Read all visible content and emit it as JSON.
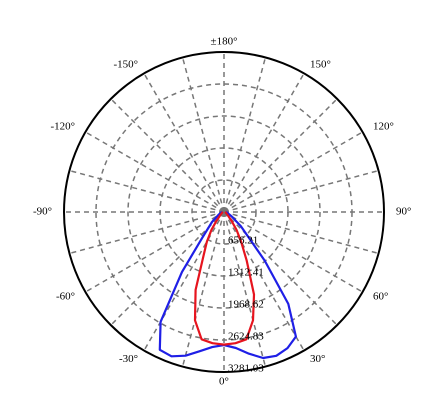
{
  "chart_data": {
    "type": "polar",
    "angles": [
      -90,
      -80,
      -70,
      -60,
      -50,
      -40,
      -35,
      -30,
      -25,
      -20,
      -15,
      -10,
      -5,
      0,
      5,
      10,
      15,
      20,
      25,
      30,
      35,
      40,
      50,
      60,
      70,
      80,
      90
    ],
    "series": [
      {
        "color": "#1f1fe6",
        "values": [
          40,
          60,
          90,
          150,
          320,
          700,
          1500,
          2600,
          3117,
          3150,
          3050,
          2900,
          2780,
          2727,
          2800,
          2950,
          3100,
          3137,
          3080,
          2950,
          2300,
          1300,
          450,
          180,
          90,
          60,
          40
        ]
      },
      {
        "color": "#e6141e",
        "values": [
          20,
          30,
          40,
          60,
          100,
          250,
          450,
          700,
          1000,
          1700,
          2300,
          2650,
          2700,
          2720,
          2700,
          2650,
          2300,
          1800,
          1100,
          700,
          450,
          250,
          100,
          60,
          40,
          30,
          20
        ]
      }
    ],
    "rlim": [
      0,
      3281.03
    ],
    "rticks": [
      656.21,
      1312.41,
      1968.62,
      2624.83,
      3281.03
    ],
    "angleticks": [
      {
        "value": 0,
        "label": "0°"
      },
      {
        "value": 30,
        "label": "30°"
      },
      {
        "value": 60,
        "label": "60°"
      },
      {
        "value": 90,
        "label": "90°"
      },
      {
        "value": 120,
        "label": "120°"
      },
      {
        "value": 150,
        "label": "150°"
      },
      {
        "value": 180,
        "label": "±180°"
      },
      {
        "value": -150,
        "label": "-150°"
      },
      {
        "value": -120,
        "label": "-120°"
      },
      {
        "value": -90,
        "label": "-90°"
      },
      {
        "value": -60,
        "label": "-60°"
      },
      {
        "value": -30,
        "label": "-30°"
      }
    ],
    "angle_grid_step": 15,
    "grid": true
  }
}
